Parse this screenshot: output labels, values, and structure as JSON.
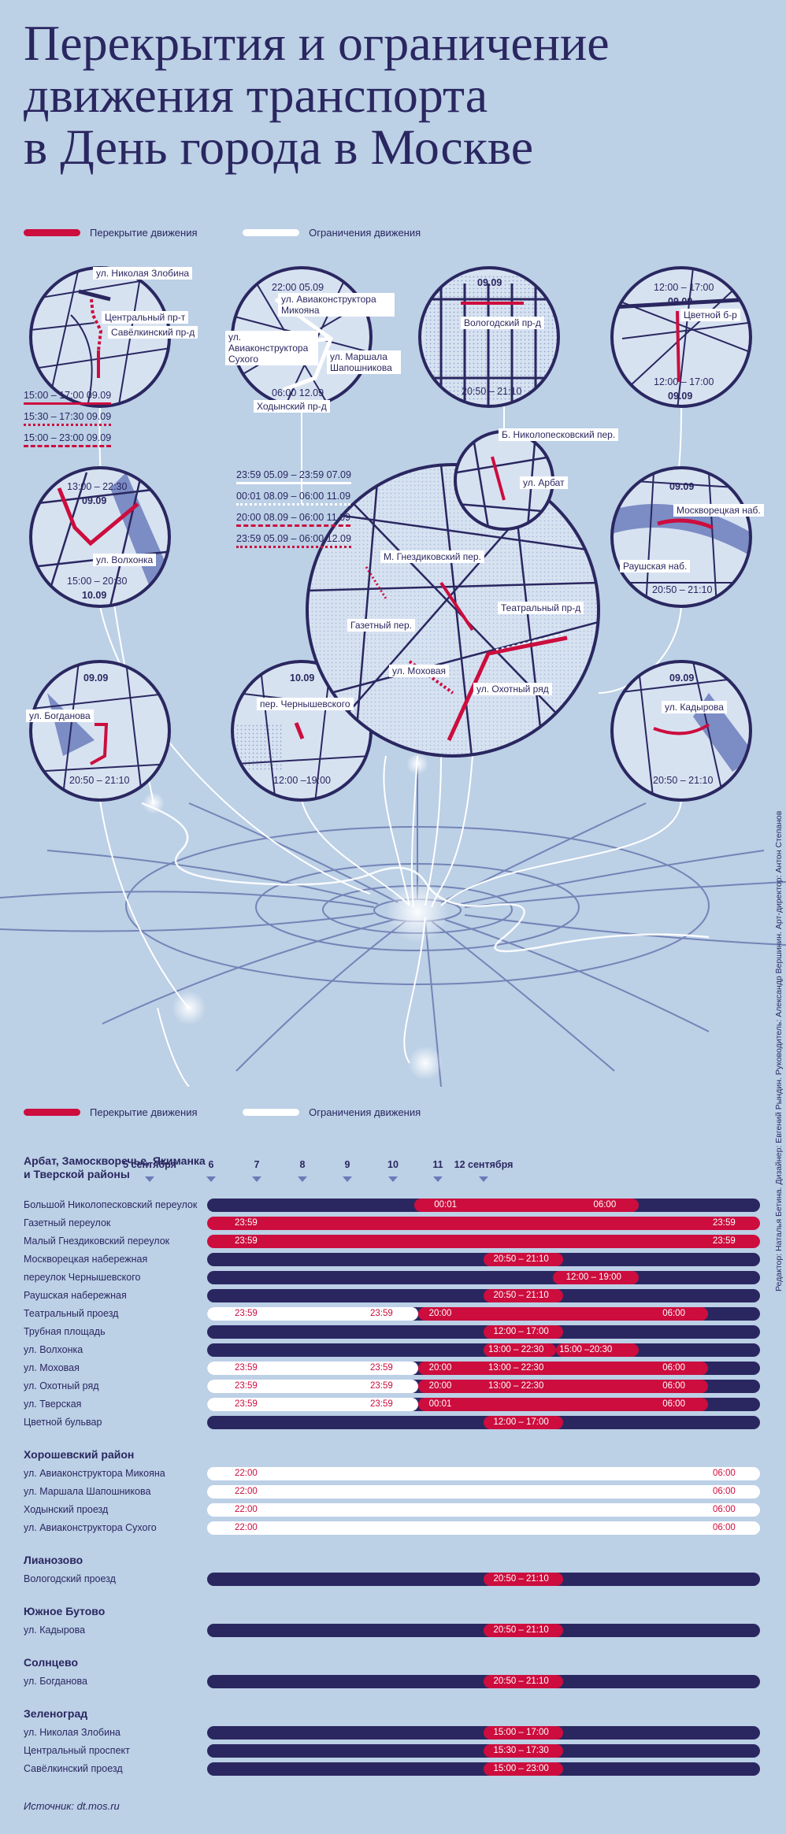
{
  "title": [
    "Перекрытия и ограничение",
    "движения транспорта",
    "в День города в Москве"
  ],
  "legend": {
    "closure": "Перекрытие движения",
    "restriction": "Ограничения движения"
  },
  "colors": {
    "navy": "#2a2760",
    "red": "#cc0d3e",
    "white": "#ffffff",
    "bg": "#bcd0e6"
  },
  "maps": {
    "zelenograd": {
      "labels": [
        "ул. Николая Злобина",
        "Центральный пр-т",
        "Савёлкинский пр-д"
      ],
      "times": [
        "15:00 – 17:00 09.09",
        "15:30 – 17:30 09.09",
        "15:00 – 23:00 09.09"
      ]
    },
    "khoroshevo": {
      "labels": [
        "22:00 05.09",
        "ул. Авиаконструктора Микояна",
        "ул. Авиаконструктора Сухого",
        "ул. Маршала Шапошникова",
        "06:00 12.09",
        "Ходынский пр-д"
      ]
    },
    "lianozovo": {
      "labels": [
        "09.09",
        "Вологодский пр-д",
        "20:50 – 21:10"
      ]
    },
    "tsvetnoy": {
      "labels": [
        "12:00 – 17:00",
        "09.09",
        "Цветной б-р",
        "12:00 – 17:00",
        "09.09"
      ]
    },
    "arbat": {
      "labels": [
        "Б. Николопесковский пер.",
        "ул. Арбат"
      ]
    },
    "legendTimes": [
      "23:59 05.09 – 23:59 07.09",
      "00:01 08.09 – 06:00 11.09",
      "20:00 08.09 – 06:00 11.09",
      "23:59 05.09 – 06:00 12.09"
    ],
    "volkhonka": {
      "labels": [
        "13:00 – 22:30",
        "09.09",
        "ул. Волхонка",
        "15:00 – 20:30",
        "10.09"
      ]
    },
    "moskvoretskaya": {
      "labels": [
        "09.09",
        "Москворецкая наб.",
        "Раушская наб.",
        "20:50 – 21:10"
      ]
    },
    "center": {
      "labels": [
        "М. Гнездиковский пер.",
        "Театральный пр-д",
        "Газетный пер.",
        "ул. Моховая",
        "ул. Охотный ряд"
      ]
    },
    "solntsevo": {
      "labels": [
        "09.09",
        "ул. Богданова",
        "20:50 – 21:10"
      ]
    },
    "chernyshevsky": {
      "labels": [
        "10.09",
        "пер. Чернышевского",
        "12:00 –19:00"
      ]
    },
    "butovo": {
      "labels": [
        "09.09",
        "ул. Кадырова",
        "20:50 – 21:10"
      ]
    }
  },
  "schedule": {
    "days": [
      "5 сентября",
      "6",
      "7",
      "8",
      "9",
      "10",
      "11",
      "12  сентября"
    ],
    "sections": [
      {
        "title": "Арбат, Замоскворечье, Якиманка и Тверской районы",
        "rows": [
          {
            "name": "Большой Николопесковский переулок",
            "labels": [
              "00:01",
              "06:00"
            ],
            "base": "navy",
            "segs": [
              {
                "from": 3.0,
                "to": 6.25,
                "color": "red"
              }
            ]
          },
          {
            "name": "Газетный переулок",
            "labels": [
              "23:59",
              "23:59"
            ],
            "base": "red",
            "segs": []
          },
          {
            "name": "Малый Гнездиковский переулок",
            "labels": [
              "23:59",
              "23:59"
            ],
            "base": "red",
            "segs": []
          },
          {
            "name": "Москворецкая набережная",
            "labels": [
              "20:50 – 21:10"
            ],
            "base": "navy",
            "segs": [
              {
                "from": 4.0,
                "to": 5.15,
                "color": "red"
              }
            ]
          },
          {
            "name": "переулок Чернышевского",
            "labels": [
              "12:00 – 19:00"
            ],
            "base": "navy",
            "segs": [
              {
                "from": 5.0,
                "to": 6.25,
                "color": "red"
              }
            ]
          },
          {
            "name": "Раушская набережная",
            "labels": [
              "20:50 – 21:10"
            ],
            "base": "navy",
            "segs": [
              {
                "from": 4.0,
                "to": 5.15,
                "color": "red"
              }
            ]
          },
          {
            "name": "Театральный проезд",
            "labels": [
              "23:59",
              "23:59",
              "20:00",
              "06:00"
            ],
            "base": "navy",
            "segs": [
              {
                "from": 0.0,
                "to": 3.05,
                "color": "white"
              },
              {
                "from": 3.05,
                "to": 7.25,
                "color": "red"
              }
            ]
          },
          {
            "name": "Трубная площадь",
            "labels": [
              "12:00 – 17:00"
            ],
            "base": "navy",
            "segs": [
              {
                "from": 4.0,
                "to": 5.15,
                "color": "red"
              }
            ]
          },
          {
            "name": "ул. Волхонка",
            "labels": [
              "13:00 – 22:30",
              "15:00 –20:30"
            ],
            "base": "navy",
            "segs": [
              {
                "from": 4.0,
                "to": 5.05,
                "color": "red"
              },
              {
                "from": 5.05,
                "to": 6.25,
                "color": "red"
              }
            ]
          },
          {
            "name": "ул. Моховая",
            "labels": [
              "23:59",
              "23:59",
              "20:00",
              "13:00 – 22:30",
              "06:00"
            ],
            "base": "navy",
            "segs": [
              {
                "from": 0.0,
                "to": 3.05,
                "color": "white"
              },
              {
                "from": 3.05,
                "to": 7.25,
                "color": "red"
              }
            ]
          },
          {
            "name": "ул. Охотный ряд",
            "labels": [
              "23:59",
              "23:59",
              "20:00",
              "13:00 – 22:30",
              "06:00"
            ],
            "base": "navy",
            "segs": [
              {
                "from": 0.0,
                "to": 3.05,
                "color": "white"
              },
              {
                "from": 3.05,
                "to": 7.25,
                "color": "red"
              }
            ]
          },
          {
            "name": "ул. Тверская",
            "labels": [
              "23:59",
              "23:59",
              "00:01",
              "06:00"
            ],
            "base": "navy",
            "segs": [
              {
                "from": 0.0,
                "to": 3.05,
                "color": "white"
              },
              {
                "from": 3.05,
                "to": 7.25,
                "color": "red"
              }
            ]
          },
          {
            "name": "Цветной бульвар",
            "labels": [
              "12:00 – 17:00"
            ],
            "base": "navy",
            "segs": [
              {
                "from": 4.0,
                "to": 5.15,
                "color": "red"
              }
            ]
          }
        ]
      },
      {
        "title": "Хорошевский район",
        "rows": [
          {
            "name": "ул. Авиаконструктора Микояна",
            "labels": [
              "22:00",
              "06:00"
            ],
            "base": "white",
            "segs": []
          },
          {
            "name": "ул. Маршала Шапошникова",
            "labels": [
              "22:00",
              "06:00"
            ],
            "base": "white",
            "segs": []
          },
          {
            "name": "Ходынский проезд",
            "labels": [
              "22:00",
              "06:00"
            ],
            "base": "white",
            "segs": []
          },
          {
            "name": "ул. Авиаконструктора Сухого",
            "labels": [
              "22:00",
              "06:00"
            ],
            "base": "white",
            "segs": []
          }
        ]
      },
      {
        "title": "Лианозово",
        "rows": [
          {
            "name": "Вологодский проезд",
            "labels": [
              "20:50 – 21:10"
            ],
            "base": "navy",
            "segs": [
              {
                "from": 4.0,
                "to": 5.15,
                "color": "red"
              }
            ]
          }
        ]
      },
      {
        "title": "Южное Бутово",
        "rows": [
          {
            "name": "ул. Кадырова",
            "labels": [
              "20:50 – 21:10"
            ],
            "base": "navy",
            "segs": [
              {
                "from": 4.0,
                "to": 5.15,
                "color": "red"
              }
            ]
          }
        ]
      },
      {
        "title": "Солнцево",
        "rows": [
          {
            "name": "ул. Богданова",
            "labels": [
              "20:50 – 21:10"
            ],
            "base": "navy",
            "segs": [
              {
                "from": 4.0,
                "to": 5.15,
                "color": "red"
              }
            ]
          }
        ]
      },
      {
        "title": "Зеленоград",
        "rows": [
          {
            "name": "ул. Николая Злобина",
            "labels": [
              "15:00 – 17:00"
            ],
            "base": "navy",
            "segs": [
              {
                "from": 4.0,
                "to": 5.15,
                "color": "red"
              }
            ]
          },
          {
            "name": "Центральный проспект",
            "labels": [
              "15:30 – 17:30"
            ],
            "base": "navy",
            "segs": [
              {
                "from": 4.0,
                "to": 5.15,
                "color": "red"
              }
            ]
          },
          {
            "name": "Савёлкинский проезд",
            "labels": [
              "15:00 – 23:00"
            ],
            "base": "navy",
            "segs": [
              {
                "from": 4.0,
                "to": 5.15,
                "color": "red"
              }
            ]
          }
        ]
      }
    ]
  },
  "source": "Источник: dt.mos.ru",
  "credits": "Редактор: Наталья Бетина. Дизайнер: Евгений Рындин. Руководитель: Александр Вершинин. Арт-директор: Антон Степанов"
}
